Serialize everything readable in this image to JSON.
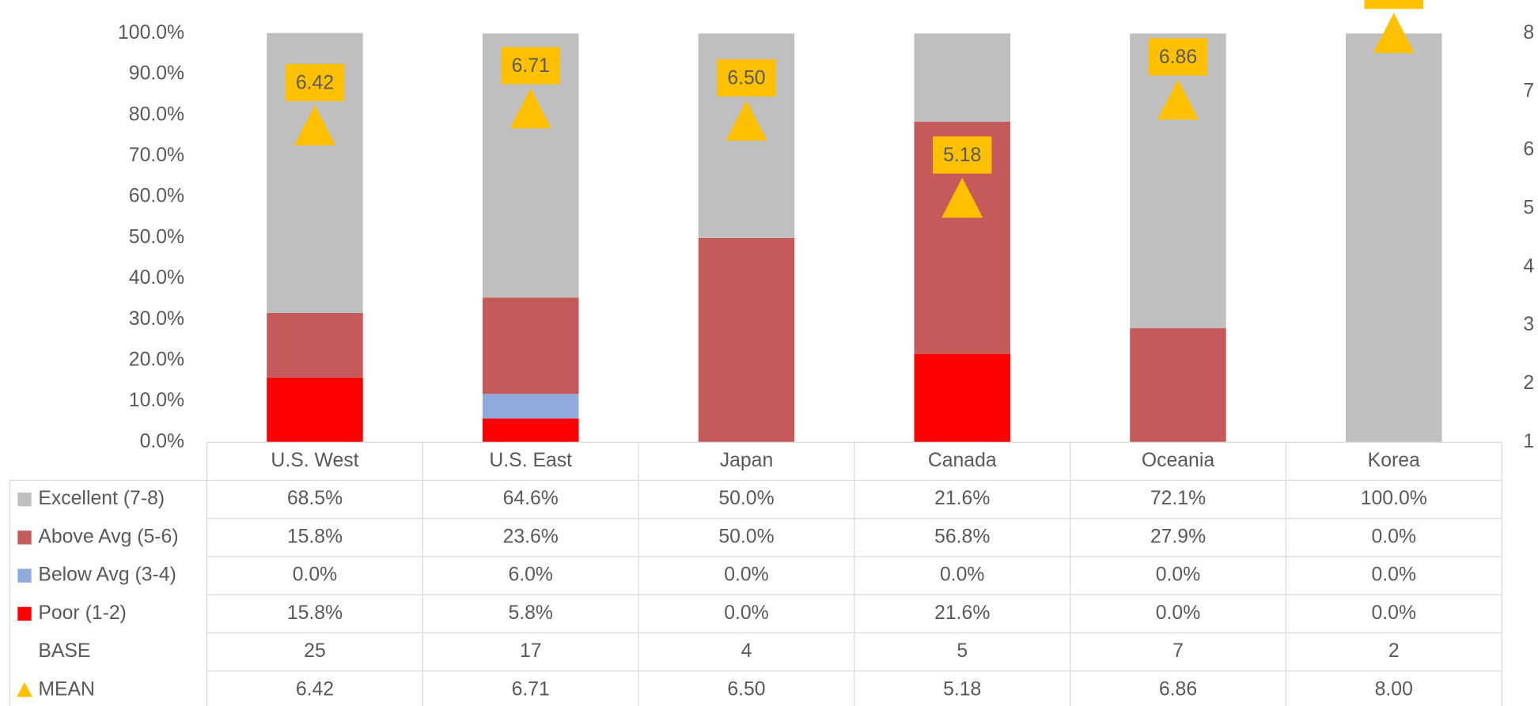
{
  "chart_data": {
    "type": "bar",
    "categories": [
      "U.S. West",
      "U.S. East",
      "Japan",
      "Canada",
      "Oceania",
      "Korea"
    ],
    "series": [
      {
        "name": "Excellent (7-8)",
        "color": "#bfbfbf",
        "values": [
          68.5,
          64.6,
          50.0,
          21.6,
          72.1,
          100.0
        ],
        "value_labels": [
          "68.5%",
          "64.6%",
          "50.0%",
          "21.6%",
          "72.1%",
          "100.0%"
        ]
      },
      {
        "name": "Above Avg (5-6)",
        "color": "#c55a5a",
        "values": [
          15.8,
          23.6,
          50.0,
          56.8,
          27.9,
          0.0
        ],
        "value_labels": [
          "15.8%",
          "23.6%",
          "50.0%",
          "56.8%",
          "27.9%",
          "0.0%"
        ]
      },
      {
        "name": "Below Avg (3-4)",
        "color": "#8faadc",
        "values": [
          0.0,
          6.0,
          0.0,
          0.0,
          0.0,
          0.0
        ],
        "value_labels": [
          "0.0%",
          "6.0%",
          "0.0%",
          "0.0%",
          "0.0%",
          "0.0%"
        ]
      },
      {
        "name": "Poor (1-2)",
        "color": "#ff0000",
        "values": [
          15.8,
          5.8,
          0.0,
          21.6,
          0.0,
          0.0
        ],
        "value_labels": [
          "15.8%",
          "5.8%",
          "0.0%",
          "21.6%",
          "0.0%",
          "0.0%"
        ]
      }
    ],
    "base": {
      "name": "BASE",
      "values": [
        25,
        17,
        4,
        5,
        7,
        2
      ]
    },
    "mean": {
      "name": "MEAN",
      "type": "scatter",
      "axis": "y2",
      "color": "#ffc000",
      "values": [
        6.42,
        6.71,
        6.5,
        5.18,
        6.86,
        8.0
      ],
      "value_labels": [
        "6.42",
        "6.71",
        "6.50",
        "5.18",
        "6.86",
        "8.00"
      ]
    },
    "ylim": [
      0,
      100
    ],
    "yticks": [
      {
        "value": 0,
        "label": "0.0%"
      },
      {
        "value": 10,
        "label": "10.0%"
      },
      {
        "value": 20,
        "label": "20.0%"
      },
      {
        "value": 30,
        "label": "30.0%"
      },
      {
        "value": 40,
        "label": "40.0%"
      },
      {
        "value": 50,
        "label": "50.0%"
      },
      {
        "value": 60,
        "label": "60.0%"
      },
      {
        "value": 70,
        "label": "70.0%"
      },
      {
        "value": 80,
        "label": "80.0%"
      },
      {
        "value": 90,
        "label": "90.0%"
      },
      {
        "value": 100,
        "label": "100.0%"
      }
    ],
    "y2lim": [
      1,
      8
    ],
    "y2ticks": [
      1,
      2,
      3,
      4,
      5,
      6,
      7,
      8
    ],
    "grid": false
  }
}
